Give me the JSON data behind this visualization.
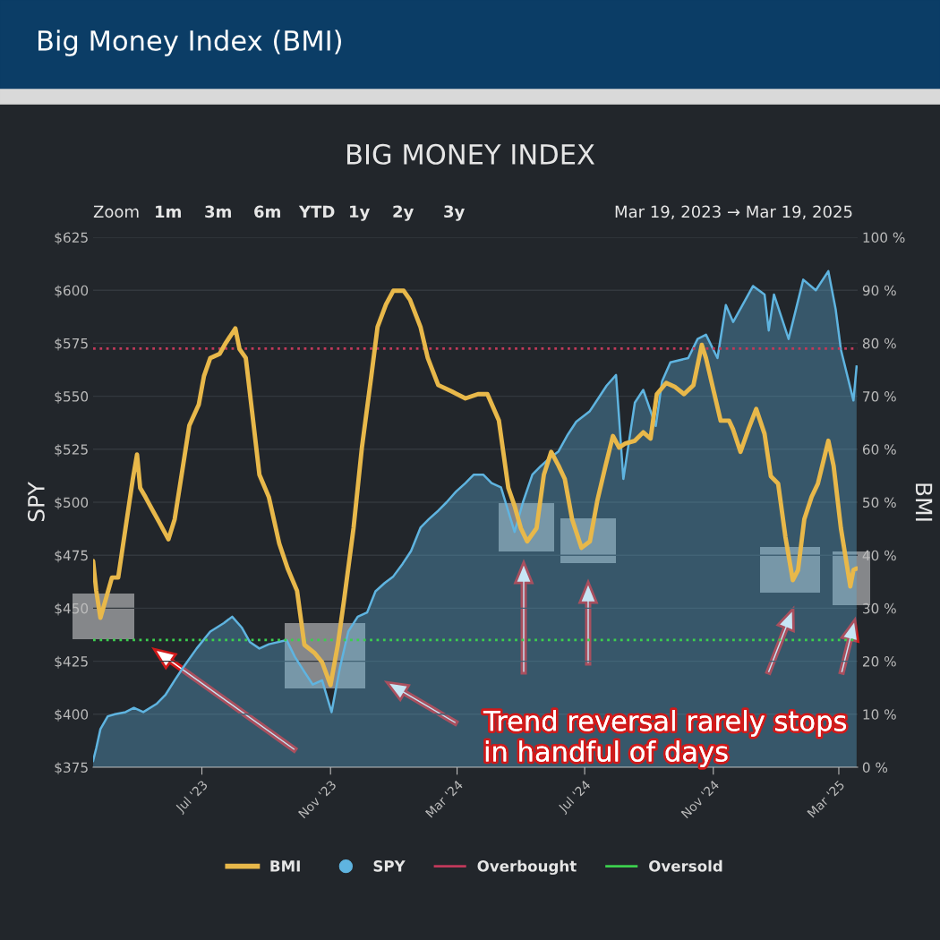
{
  "chart_data": {
    "type": "line",
    "title": "Big Money Index (BMI)",
    "subtitle": "BIG MONEY INDEX",
    "ylabel": "SPY",
    "y2label": "BMI",
    "xlim": [
      "2023-03-19",
      "2025-03-19"
    ],
    "xticks": [
      {
        "value": "2023-07-01",
        "label": "Jul '23"
      },
      {
        "value": "2023-11-01",
        "label": "Nov '23"
      },
      {
        "value": "2024-03-01",
        "label": "Mar '24"
      },
      {
        "value": "2024-07-01",
        "label": "Jul '24"
      },
      {
        "value": "2024-11-01",
        "label": "Nov '24"
      },
      {
        "value": "2025-03-01",
        "label": "Mar '25"
      }
    ],
    "ylim": [
      375,
      625
    ],
    "yticks": [
      {
        "value": 375,
        "label": "$375"
      },
      {
        "value": 400,
        "label": "$400"
      },
      {
        "value": 425,
        "label": "$425"
      },
      {
        "value": 450,
        "label": "$450"
      },
      {
        "value": 475,
        "label": "$475"
      },
      {
        "value": 500,
        "label": "$500"
      },
      {
        "value": 525,
        "label": "$525"
      },
      {
        "value": 550,
        "label": "$550"
      },
      {
        "value": 575,
        "label": "$575"
      },
      {
        "value": 600,
        "label": "$600"
      },
      {
        "value": 625,
        "label": "$625"
      }
    ],
    "y2lim": [
      0,
      100
    ],
    "y2ticks": [
      {
        "value": 0,
        "label": "0 %"
      },
      {
        "value": 10,
        "label": "10 %"
      },
      {
        "value": 20,
        "label": "20 %"
      },
      {
        "value": 30,
        "label": "30 %"
      },
      {
        "value": 40,
        "label": "40 %"
      },
      {
        "value": 50,
        "label": "50 %"
      },
      {
        "value": 60,
        "label": "60 %"
      },
      {
        "value": 70,
        "label": "70 %"
      },
      {
        "value": 80,
        "label": "80 %"
      },
      {
        "value": 90,
        "label": "90 %"
      },
      {
        "value": 100,
        "label": "100 %"
      }
    ],
    "grid": "y",
    "legend": "bottom",
    "series": [
      {
        "name": "SPY",
        "type": "area",
        "color": "#5fb4e0",
        "x": [
          "2023-03-19",
          "2023-03-22",
          "2023-03-26",
          "2023-04-02",
          "2023-04-09",
          "2023-04-19",
          "2023-04-27",
          "2023-05-06",
          "2023-05-19",
          "2023-05-27",
          "2023-06-05",
          "2023-06-13",
          "2023-06-26",
          "2023-07-09",
          "2023-07-22",
          "2023-07-30",
          "2023-08-08",
          "2023-08-16",
          "2023-08-25",
          "2023-09-03",
          "2023-09-20",
          "2023-09-28",
          "2023-10-07",
          "2023-10-15",
          "2023-10-24",
          "2023-11-02",
          "2023-11-10",
          "2023-11-18",
          "2023-11-27",
          "2023-12-06",
          "2023-12-14",
          "2023-12-23",
          "2023-12-31",
          "2024-01-09",
          "2024-01-17",
          "2024-01-26",
          "2024-02-03",
          "2024-02-12",
          "2024-02-20",
          "2024-02-29",
          "2024-03-09",
          "2024-03-17",
          "2024-03-26",
          "2024-04-03",
          "2024-04-12",
          "2024-04-25",
          "2024-05-03",
          "2024-05-12",
          "2024-05-20",
          "2024-05-29",
          "2024-06-06",
          "2024-06-15",
          "2024-06-23",
          "2024-07-06",
          "2024-07-14",
          "2024-07-22",
          "2024-07-31",
          "2024-08-07",
          "2024-08-18",
          "2024-08-26",
          "2024-09-07",
          "2024-09-13",
          "2024-09-21",
          "2024-10-08",
          "2024-10-17",
          "2024-10-25",
          "2024-11-05",
          "2024-11-13",
          "2024-11-20",
          "2024-12-09",
          "2024-12-20",
          "2024-12-24",
          "2024-12-29",
          "2025-01-12",
          "2025-01-26",
          "2025-02-07",
          "2025-02-19",
          "2025-02-26",
          "2025-03-03",
          "2025-03-15",
          "2025-03-18"
        ],
        "values": [
          378,
          384,
          393,
          399,
          400,
          401,
          403,
          401,
          405,
          409,
          416,
          422,
          431,
          439,
          443,
          446,
          441,
          434,
          431,
          433,
          435,
          427,
          420,
          414,
          416,
          401,
          422,
          439,
          446,
          448,
          458,
          462,
          465,
          471,
          477,
          488,
          492,
          496,
          500,
          505,
          509,
          513,
          513,
          509,
          507,
          486,
          500,
          513,
          517,
          521,
          524,
          532,
          538,
          543,
          549,
          555,
          560,
          511,
          547,
          553,
          536,
          557,
          566,
          568,
          577,
          579,
          568,
          593,
          585,
          602,
          598,
          581,
          598,
          577,
          605,
          600,
          609,
          591,
          572,
          548,
          564
        ]
      },
      {
        "name": "BMI",
        "axis": "y2",
        "color": "#e8b84a",
        "x": [
          "2023-03-19",
          "2023-03-22",
          "2023-03-26",
          "2023-03-31",
          "2023-04-06",
          "2023-04-12",
          "2023-04-19",
          "2023-04-26",
          "2023-04-30",
          "2023-05-03",
          "2023-05-08",
          "2023-05-14",
          "2023-05-21",
          "2023-05-30",
          "2023-06-05",
          "2023-06-13",
          "2023-06-19",
          "2023-06-28",
          "2023-07-03",
          "2023-07-09",
          "2023-07-18",
          "2023-07-24",
          "2023-08-02",
          "2023-08-06",
          "2023-08-12",
          "2023-08-18",
          "2023-08-25",
          "2023-09-03",
          "2023-09-13",
          "2023-09-21",
          "2023-09-30",
          "2023-10-07",
          "2023-10-17",
          "2023-10-24",
          "2023-11-01",
          "2023-11-08",
          "2023-11-14",
          "2023-11-23",
          "2023-12-01",
          "2023-12-10",
          "2023-12-16",
          "2023-12-24",
          "2023-12-31",
          "2024-01-10",
          "2024-01-16",
          "2024-01-26",
          "2024-02-02",
          "2024-02-12",
          "2024-02-25",
          "2024-03-09",
          "2024-03-21",
          "2024-03-30",
          "2024-04-10",
          "2024-04-19",
          "2024-04-25",
          "2024-05-01",
          "2024-05-07",
          "2024-05-16",
          "2024-05-23",
          "2024-05-30",
          "2024-06-06",
          "2024-06-12",
          "2024-06-19",
          "2024-06-28",
          "2024-07-06",
          "2024-07-13",
          "2024-07-21",
          "2024-07-28",
          "2024-08-03",
          "2024-08-09",
          "2024-08-18",
          "2024-08-26",
          "2024-09-02",
          "2024-09-08",
          "2024-09-17",
          "2024-09-25",
          "2024-10-04",
          "2024-10-13",
          "2024-10-21",
          "2024-10-25",
          "2024-11-03",
          "2024-11-08",
          "2024-11-16",
          "2024-11-20",
          "2024-11-27",
          "2024-12-05",
          "2024-12-12",
          "2024-12-20",
          "2024-12-26",
          "2025-01-02",
          "2025-01-09",
          "2025-01-16",
          "2025-01-21",
          "2025-01-27",
          "2025-02-03",
          "2025-02-09",
          "2025-02-19",
          "2025-02-24",
          "2025-03-03",
          "2025-03-12",
          "2025-03-15",
          "2025-03-18"
        ],
        "values": [
          38.9,
          33.3,
          28.2,
          31.6,
          35.8,
          35.8,
          45.1,
          54.4,
          59.0,
          52.7,
          51.0,
          48.8,
          46.3,
          43.0,
          46.8,
          56.9,
          64.5,
          68.4,
          73.8,
          77.2,
          78.0,
          80.1,
          82.8,
          78.9,
          77.2,
          67.1,
          55.2,
          51.0,
          42.2,
          37.5,
          33.3,
          23.1,
          21.5,
          19.8,
          15.5,
          23.1,
          31.6,
          45.1,
          60.3,
          73.8,
          83.1,
          87.3,
          89.9,
          89.9,
          88.2,
          83.1,
          77.2,
          72.1,
          70.9,
          69.6,
          70.4,
          70.4,
          65.4,
          52.7,
          49.3,
          45.1,
          42.6,
          45.1,
          55.2,
          59.5,
          56.9,
          54.4,
          46.8,
          41.4,
          42.6,
          50.2,
          56.9,
          62.5,
          60.3,
          61.1,
          61.6,
          63.2,
          62.0,
          70.4,
          72.5,
          71.8,
          70.4,
          72.1,
          79.7,
          77.2,
          69.6,
          65.4,
          65.4,
          63.7,
          59.5,
          64.0,
          67.6,
          62.9,
          54.9,
          53.5,
          43.4,
          35.3,
          37.2,
          46.8,
          51.0,
          53.5,
          61.6,
          56.9,
          45.1,
          34.1,
          37.2,
          37.5
        ]
      }
    ],
    "ref_lines": [
      {
        "axis": "y2",
        "value": 79,
        "label": "Overbought",
        "color": "#c0395a",
        "line_style": "dotted"
      },
      {
        "axis": "y2",
        "value": 24,
        "label": "Oversold",
        "color": "#3ccf4e",
        "line_style": "dotted"
      }
    ],
    "annotations": [
      "Trend reversal rarely stops\nin handful of days",
      "Zoom",
      "1m",
      "3m",
      "6m",
      "YTD",
      "1y",
      "2y",
      "3y",
      "Mar 19, 2023 → Mar 19, 2025"
    ]
  }
}
